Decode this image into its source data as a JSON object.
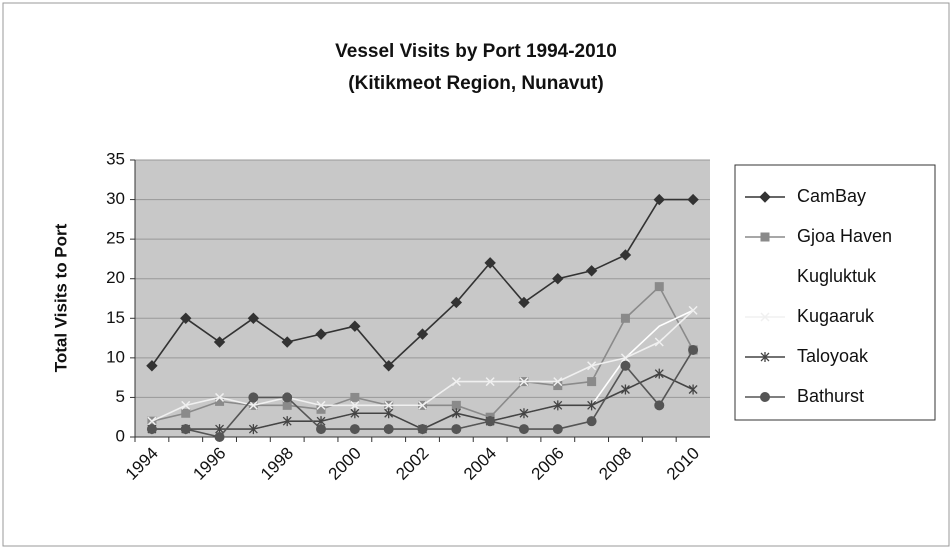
{
  "chart_data": {
    "type": "line",
    "title": "Vessel Visits by Port 1994-2010",
    "subtitle": "(Kitikmeot Region, Nunavut)",
    "y_label": "Total Visits to Port",
    "categories": [
      "1994",
      null,
      "1996",
      null,
      "1998",
      null,
      "2000",
      null,
      "2002",
      null,
      "2004",
      null,
      "2006",
      null,
      "2008",
      null,
      "2010"
    ],
    "series": [
      {
        "name": "CamBay",
        "color": "#333333",
        "marker": "diamond",
        "values": [
          9,
          15,
          12,
          15,
          12,
          13,
          14,
          9,
          13,
          17,
          22,
          17,
          20,
          21,
          23,
          30,
          30
        ]
      },
      {
        "name": "Gjoa Haven",
        "color": "#8a8a8a",
        "marker": "square",
        "values": [
          2,
          3,
          4.5,
          4,
          4,
          3.5,
          5,
          4,
          4,
          4,
          2.5,
          7,
          6.5,
          7,
          15,
          19,
          11
        ]
      },
      {
        "name": "Kugluktuk",
        "color": "#ffffff",
        "marker": "none",
        "values": [
          1,
          1,
          1,
          1,
          2,
          2,
          3,
          3,
          1,
          1,
          2,
          3,
          4,
          4,
          10,
          14,
          16
        ]
      },
      {
        "name": "Kugaaruk",
        "color": "#f0f0f0",
        "marker": "x",
        "values": [
          2,
          4,
          5,
          4,
          5,
          4,
          4,
          4,
          4,
          7,
          7,
          7,
          7,
          9,
          10,
          12,
          16
        ]
      },
      {
        "name": "Taloyoak",
        "color": "#444444",
        "marker": "star",
        "values": [
          1,
          1,
          1,
          1,
          2,
          2,
          3,
          3,
          1,
          3,
          2,
          3,
          4,
          4,
          6,
          8,
          6
        ]
      },
      {
        "name": "Bathurst",
        "color": "#555555",
        "marker": "circle",
        "values": [
          1,
          1,
          0,
          5,
          5,
          1,
          1,
          1,
          1,
          1,
          2,
          1,
          1,
          2,
          9,
          4,
          11
        ]
      }
    ],
    "ylim": [
      0,
      35
    ],
    "yticks": [
      0,
      5,
      10,
      15,
      20,
      25,
      30,
      35
    ],
    "grid": true
  }
}
